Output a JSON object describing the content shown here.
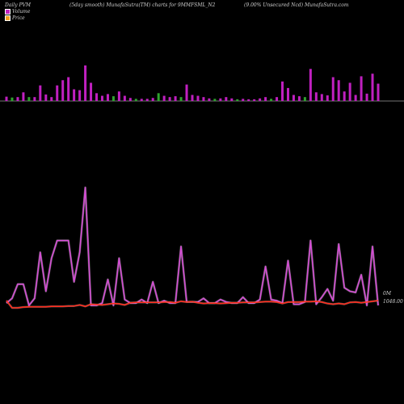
{
  "header": {
    "left": "Daily PVM",
    "center_left": "(5day smooth) MunafaSutra(TM) charts for 9MMFSML_N2",
    "center_right": "(9.00% Unsecured Ncd) MunafaSutra.com"
  },
  "legend": {
    "volume_label": "Volume",
    "price_label": "Price"
  },
  "colors": {
    "volume_up": "#c020c0",
    "volume_down": "#2ea32e",
    "line_pvm": "#d44cd4",
    "line_price": "#ff2a1a",
    "background": "#000000"
  },
  "chart_data": {
    "type": "line",
    "title": "",
    "axis_labels": {
      "volume_axis": "0M",
      "price_axis": "1048.00"
    },
    "volume_bars": {
      "baseline_label": "",
      "values": [
        10,
        8,
        9,
        20,
        9,
        9,
        36,
        15,
        9,
        36,
        48,
        55,
        27,
        25,
        82,
        42,
        18,
        12,
        16,
        11,
        22,
        12,
        7,
        5,
        5,
        5,
        7,
        18,
        12,
        9,
        11,
        9,
        38,
        14,
        12,
        9,
        6,
        5,
        6,
        9,
        6,
        4,
        5,
        4,
        4,
        6,
        9,
        5,
        9,
        45,
        30,
        14,
        11,
        9,
        74,
        20,
        16,
        13,
        55,
        48,
        22,
        42,
        14,
        57,
        17,
        63,
        40
      ],
      "up": [
        true,
        false,
        true,
        true,
        false,
        true,
        true,
        true,
        true,
        true,
        true,
        true,
        true,
        true,
        true,
        true,
        true,
        true,
        true,
        false,
        true,
        true,
        true,
        false,
        true,
        true,
        true,
        false,
        true,
        true,
        true,
        false,
        true,
        true,
        true,
        true,
        true,
        false,
        true,
        true,
        true,
        false,
        true,
        true,
        true,
        true,
        true,
        false,
        true,
        true,
        true,
        true,
        true,
        false,
        true,
        true,
        true,
        true,
        true,
        true,
        true,
        true,
        true,
        true,
        true,
        true,
        true
      ]
    },
    "series": [
      {
        "name": "",
        "role": "pvm",
        "values": [
          0.02,
          0.06,
          0.18,
          0.18,
          0.0,
          0.06,
          0.45,
          0.12,
          0.4,
          0.55,
          0.55,
          0.55,
          0.2,
          0.45,
          1.0,
          0.0,
          0.0,
          0.02,
          0.22,
          0.0,
          0.4,
          0.05,
          0.02,
          0.02,
          0.05,
          0.02,
          0.2,
          0.02,
          0.04,
          0.02,
          0.02,
          0.5,
          0.03,
          0.03,
          0.03,
          0.06,
          0.02,
          0.02,
          0.05,
          0.03,
          0.02,
          0.02,
          0.07,
          0.02,
          0.02,
          0.05,
          0.33,
          0.05,
          0.04,
          0.02,
          0.38,
          0.01,
          0.01,
          0.03,
          0.55,
          0.01,
          0.07,
          0.14,
          0.04,
          0.52,
          0.15,
          0.12,
          0.11,
          0.26,
          0.0,
          0.5,
          0.0
        ]
      },
      {
        "name": "",
        "role": "price",
        "values": [
          1048.0,
          1046.0,
          1046.0,
          1046.2,
          1046.3,
          1046.3,
          1046.3,
          1046.3,
          1046.4,
          1046.4,
          1046.4,
          1046.5,
          1046.5,
          1046.8,
          1046.4,
          1047.0,
          1046.9,
          1046.8,
          1047.0,
          1047.2,
          1047.1,
          1046.8,
          1047.4,
          1047.5,
          1047.5,
          1047.5,
          1047.5,
          1047.5,
          1047.6,
          1047.6,
          1047.4,
          1047.8,
          1047.6,
          1047.7,
          1047.4,
          1047.2,
          1047.3,
          1047.3,
          1047.2,
          1047.3,
          1047.4,
          1047.4,
          1047.5,
          1047.5,
          1047.5,
          1047.6,
          1047.7,
          1047.7,
          1047.6,
          1047.2,
          1047.6,
          1047.6,
          1047.6,
          1047.7,
          1047.7,
          1047.8,
          1047.6,
          1047.2,
          1047.0,
          1047.2,
          1047.0,
          1047.5,
          1047.6,
          1047.4,
          1047.6,
          1047.8,
          1048.0
        ]
      }
    ]
  }
}
